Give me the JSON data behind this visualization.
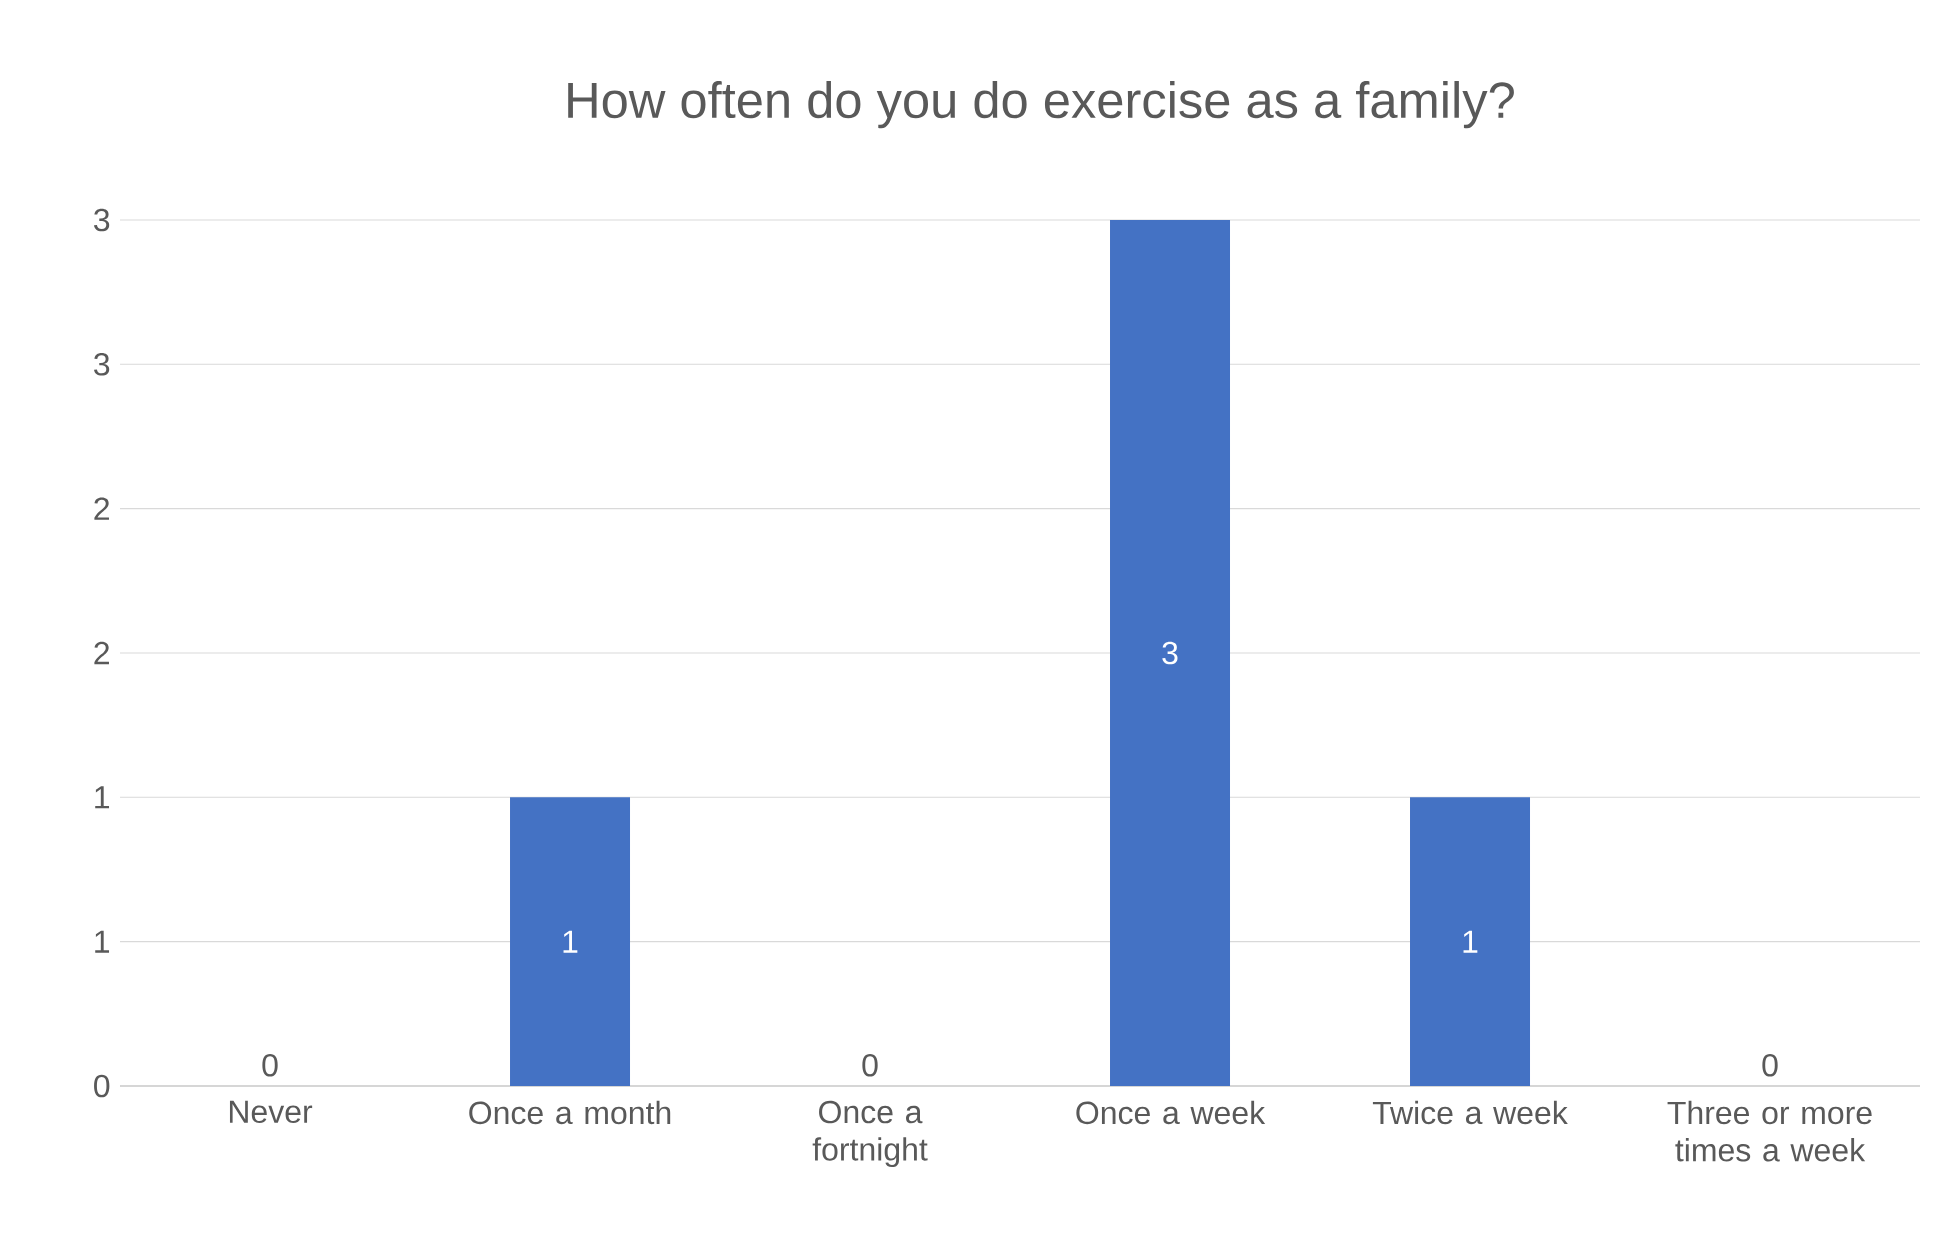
{
  "chart_data": {
    "type": "bar",
    "title": "How often do you do exercise as a family?",
    "categories": [
      "Never",
      "Once a month",
      "Once a fortnight",
      "Once a week",
      "Twice a week",
      "Three or more times a week"
    ],
    "values": [
      0,
      1,
      0,
      3,
      1,
      0
    ],
    "color": "#4472c4",
    "ylim": [
      0,
      3
    ],
    "yticks": [
      0,
      {
        "value": 0.5,
        "label": "1"
      },
      1,
      {
        "value": 1.5,
        "label": "2"
      },
      2,
      {
        "value": 2.5,
        "label": "3"
      },
      3
    ],
    "grid": "y",
    "data_labels": true
  }
}
